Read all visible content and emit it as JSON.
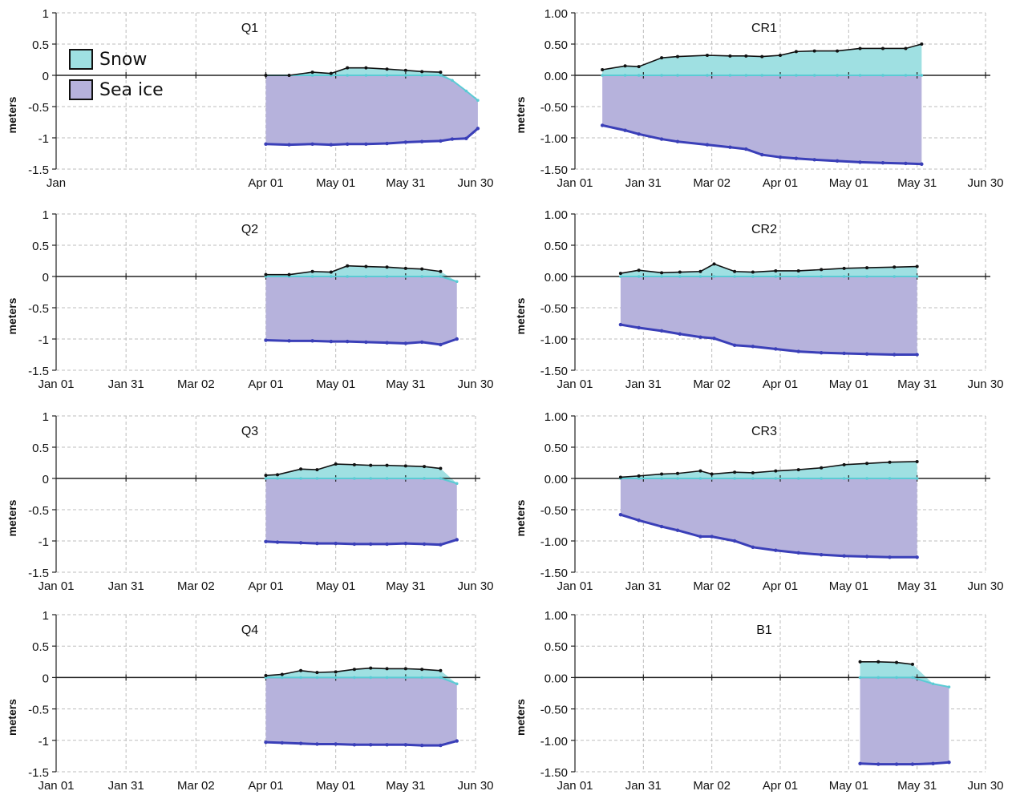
{
  "colors": {
    "snow": "#9fe0e2",
    "snow_line": "#5bcbd4",
    "ice": "#b6b2dc",
    "ice_line": "#3a3fb8",
    "top_line": "#111111",
    "grid": "#bdbdbd"
  },
  "legend": {
    "snow_label": "Snow",
    "ice_label": "Sea ice"
  },
  "chart_data": [
    {
      "type": "area",
      "title": "Q1",
      "ylabel": "meters",
      "xlabel": "",
      "ylim": [
        -1.5,
        1
      ],
      "yticks": [
        "1",
        "0.5",
        "0",
        "-0.5",
        "-1",
        "-1.5"
      ],
      "xlim": [
        0,
        180
      ],
      "xtick_labels": [
        "Jan",
        "",
        "",
        "Apr 01",
        "May 01",
        "May 31",
        "Jun 30"
      ],
      "x": [
        90,
        100,
        110,
        118,
        125,
        133,
        142,
        150,
        157,
        165,
        170,
        176,
        181
      ],
      "snow_top": [
        0.0,
        0.0,
        0.05,
        0.03,
        0.12,
        0.12,
        0.1,
        0.08,
        0.06,
        0.05,
        null,
        null,
        null
      ],
      "snow_ice_interface": [
        0.0,
        0.0,
        0.0,
        0.0,
        0.0,
        0.0,
        0.0,
        0.0,
        0.0,
        0.0,
        -0.08,
        -0.25,
        -0.4
      ],
      "ice_bottom": [
        -1.1,
        -1.11,
        -1.1,
        -1.11,
        -1.1,
        -1.1,
        -1.09,
        -1.07,
        -1.06,
        -1.05,
        -1.02,
        -1.01,
        -0.85
      ]
    },
    {
      "type": "area",
      "title": "Q2",
      "ylabel": "meters",
      "xlabel": "",
      "ylim": [
        -1.5,
        1
      ],
      "yticks": [
        "1",
        "0.5",
        "0",
        "-0.5",
        "-1",
        "-1.5"
      ],
      "xlim": [
        0,
        180
      ],
      "xtick_labels": [
        "Jan 01",
        "Jan 31",
        "Mar 02",
        "Apr 01",
        "May 01",
        "May 31",
        "Jun 30"
      ],
      "x": [
        90,
        100,
        110,
        118,
        125,
        133,
        142,
        150,
        157,
        165,
        172
      ],
      "snow_top": [
        0.03,
        0.03,
        0.08,
        0.07,
        0.17,
        0.16,
        0.15,
        0.13,
        0.12,
        0.08,
        null
      ],
      "snow_ice_interface": [
        0.0,
        0.0,
        0.0,
        0.0,
        0.0,
        0.0,
        0.0,
        0.0,
        0.0,
        0.0,
        -0.08
      ],
      "ice_bottom": [
        -1.02,
        -1.03,
        -1.03,
        -1.04,
        -1.04,
        -1.05,
        -1.06,
        -1.07,
        -1.05,
        -1.09,
        -1.0
      ]
    },
    {
      "type": "area",
      "title": "Q3",
      "ylabel": "meters",
      "xlabel": "",
      "ylim": [
        -1.5,
        1
      ],
      "yticks": [
        "1",
        "0.5",
        "0",
        "-0.5",
        "-1",
        "-1.5"
      ],
      "xlim": [
        0,
        180
      ],
      "xtick_labels": [
        "Jan 01",
        "Jan 31",
        "Mar 02",
        "Apr 01",
        "May 01",
        "May 31",
        "Jun 30"
      ],
      "x": [
        90,
        95,
        105,
        112,
        120,
        128,
        135,
        142,
        150,
        158,
        165,
        172
      ],
      "snow_top": [
        0.05,
        0.06,
        0.15,
        0.14,
        0.23,
        0.22,
        0.21,
        0.21,
        0.2,
        0.19,
        0.16,
        null
      ],
      "snow_ice_interface": [
        0.0,
        0.0,
        0.0,
        0.0,
        0.0,
        0.0,
        0.0,
        0.0,
        0.0,
        0.0,
        0.0,
        -0.08
      ],
      "ice_bottom": [
        -1.01,
        -1.02,
        -1.03,
        -1.04,
        -1.04,
        -1.05,
        -1.05,
        -1.05,
        -1.04,
        -1.05,
        -1.06,
        -0.98
      ]
    },
    {
      "type": "area",
      "title": "Q4",
      "ylabel": "meters",
      "xlabel": "",
      "ylim": [
        -1.5,
        1
      ],
      "yticks": [
        "1",
        "0.5",
        "0",
        "-0.5",
        "-1",
        "-1.5"
      ],
      "xlim": [
        0,
        180
      ],
      "xtick_labels": [
        "Jan 01",
        "Jan 31",
        "Mar 02",
        "Apr 01",
        "May 01",
        "May 31",
        "Jun 30"
      ],
      "x": [
        90,
        97,
        105,
        112,
        120,
        128,
        135,
        142,
        150,
        157,
        165,
        172
      ],
      "snow_top": [
        0.03,
        0.05,
        0.11,
        0.08,
        0.09,
        0.13,
        0.15,
        0.14,
        0.14,
        0.13,
        0.11,
        null
      ],
      "snow_ice_interface": [
        0.0,
        0.0,
        0.0,
        0.0,
        0.0,
        0.0,
        0.0,
        0.0,
        0.0,
        0.0,
        0.0,
        -0.1
      ],
      "ice_bottom": [
        -1.03,
        -1.04,
        -1.05,
        -1.06,
        -1.06,
        -1.07,
        -1.07,
        -1.07,
        -1.07,
        -1.08,
        -1.08,
        -1.01
      ]
    },
    {
      "type": "area",
      "title": "CR1",
      "ylabel": "meters",
      "xlabel": "",
      "ylim": [
        -1.5,
        1
      ],
      "yticks": [
        "1.00",
        "0.50",
        "0.00",
        "-0.50",
        "-1.00",
        "-1.50"
      ],
      "xlim": [
        0,
        180
      ],
      "xtick_labels": [
        "Jan 01",
        "Jan 31",
        "Mar 02",
        "Apr 01",
        "May 01",
        "May 31",
        "Jun 30"
      ],
      "x": [
        12,
        22,
        28,
        38,
        45,
        58,
        68,
        75,
        82,
        90,
        97,
        105,
        115,
        125,
        135,
        145,
        152
      ],
      "snow_top": [
        0.09,
        0.15,
        0.14,
        0.28,
        0.3,
        0.32,
        0.31,
        0.31,
        0.3,
        0.32,
        0.38,
        0.39,
        0.39,
        0.43,
        0.43,
        0.43,
        0.5
      ],
      "snow_ice_interface": [
        0.0,
        0.0,
        0.0,
        0.0,
        0.0,
        0.0,
        0.0,
        0.0,
        0.0,
        0.0,
        0.0,
        0.0,
        0.0,
        0.0,
        0.0,
        0.0,
        0.0
      ],
      "ice_bottom": [
        -0.8,
        -0.88,
        -0.94,
        -1.02,
        -1.06,
        -1.11,
        -1.15,
        -1.18,
        -1.27,
        -1.31,
        -1.33,
        -1.35,
        -1.37,
        -1.39,
        -1.4,
        -1.41,
        -1.42
      ]
    },
    {
      "type": "area",
      "title": "CR2",
      "ylabel": "meters",
      "xlabel": "",
      "ylim": [
        -1.5,
        1
      ],
      "yticks": [
        "1.00",
        "0.50",
        "0.00",
        "-0.50",
        "-1.00",
        "-1.50"
      ],
      "xlim": [
        0,
        180
      ],
      "xtick_labels": [
        "Jan 01",
        "Jan 31",
        "Mar 02",
        "Apr 01",
        "May 01",
        "May 31",
        "Jun 30"
      ],
      "x": [
        20,
        28,
        38,
        46,
        55,
        61,
        70,
        78,
        88,
        98,
        108,
        118,
        128,
        140,
        150
      ],
      "snow_top": [
        0.05,
        0.1,
        0.06,
        0.07,
        0.08,
        0.2,
        0.08,
        0.07,
        0.09,
        0.09,
        0.11,
        0.13,
        0.14,
        0.15,
        0.16
      ],
      "snow_ice_interface": [
        0.0,
        0.0,
        0.0,
        0.0,
        0.0,
        0.0,
        0.0,
        0.0,
        0.0,
        0.0,
        0.0,
        0.0,
        0.0,
        0.0,
        0.0
      ],
      "ice_bottom": [
        -0.77,
        -0.82,
        -0.87,
        -0.92,
        -0.97,
        -0.99,
        -1.1,
        -1.12,
        -1.16,
        -1.2,
        -1.22,
        -1.23,
        -1.24,
        -1.25,
        -1.25
      ]
    },
    {
      "type": "area",
      "title": "CR3",
      "ylabel": "meters",
      "xlabel": "",
      "ylim": [
        -1.5,
        1
      ],
      "yticks": [
        "1.00",
        "0.50",
        "0.00",
        "-0.50",
        "-1.00",
        "-1.50"
      ],
      "xlim": [
        0,
        180
      ],
      "xtick_labels": [
        "Jan 01",
        "Jan 31",
        "Mar 02",
        "Apr 01",
        "May 01",
        "May 31",
        "Jun 30"
      ],
      "x": [
        20,
        28,
        38,
        45,
        55,
        60,
        70,
        78,
        88,
        98,
        108,
        118,
        128,
        138,
        150
      ],
      "snow_top": [
        0.02,
        0.04,
        0.07,
        0.08,
        0.12,
        0.07,
        0.1,
        0.09,
        0.12,
        0.14,
        0.17,
        0.22,
        0.24,
        0.26,
        0.27
      ],
      "snow_ice_interface": [
        0.0,
        0.0,
        0.0,
        0.0,
        0.0,
        0.0,
        0.0,
        0.0,
        0.0,
        0.0,
        0.0,
        0.0,
        0.0,
        0.0,
        0.0
      ],
      "ice_bottom": [
        -0.58,
        -0.67,
        -0.77,
        -0.83,
        -0.93,
        -0.93,
        -1.0,
        -1.1,
        -1.15,
        -1.19,
        -1.22,
        -1.24,
        -1.25,
        -1.26,
        -1.26
      ]
    },
    {
      "type": "area",
      "title": "B1",
      "ylabel": "meters",
      "xlabel": "",
      "ylim": [
        -1.5,
        1
      ],
      "yticks": [
        "1.00",
        "0.50",
        "0.00",
        "-0.50",
        "-1.00",
        "-1.50"
      ],
      "xlim": [
        0,
        180
      ],
      "xtick_labels": [
        "Jan 01",
        "Jan 31",
        "Mar 02",
        "Apr 01",
        "May 01",
        "May 31",
        "Jun 30"
      ],
      "x": [
        125,
        133,
        141,
        148,
        157,
        164
      ],
      "snow_top": [
        0.25,
        0.25,
        0.24,
        0.21,
        null,
        null
      ],
      "snow_ice_interface": [
        0.0,
        0.0,
        0.0,
        0.0,
        -0.1,
        -0.15
      ],
      "ice_bottom": [
        -1.37,
        -1.38,
        -1.38,
        -1.38,
        -1.37,
        -1.35
      ]
    }
  ]
}
